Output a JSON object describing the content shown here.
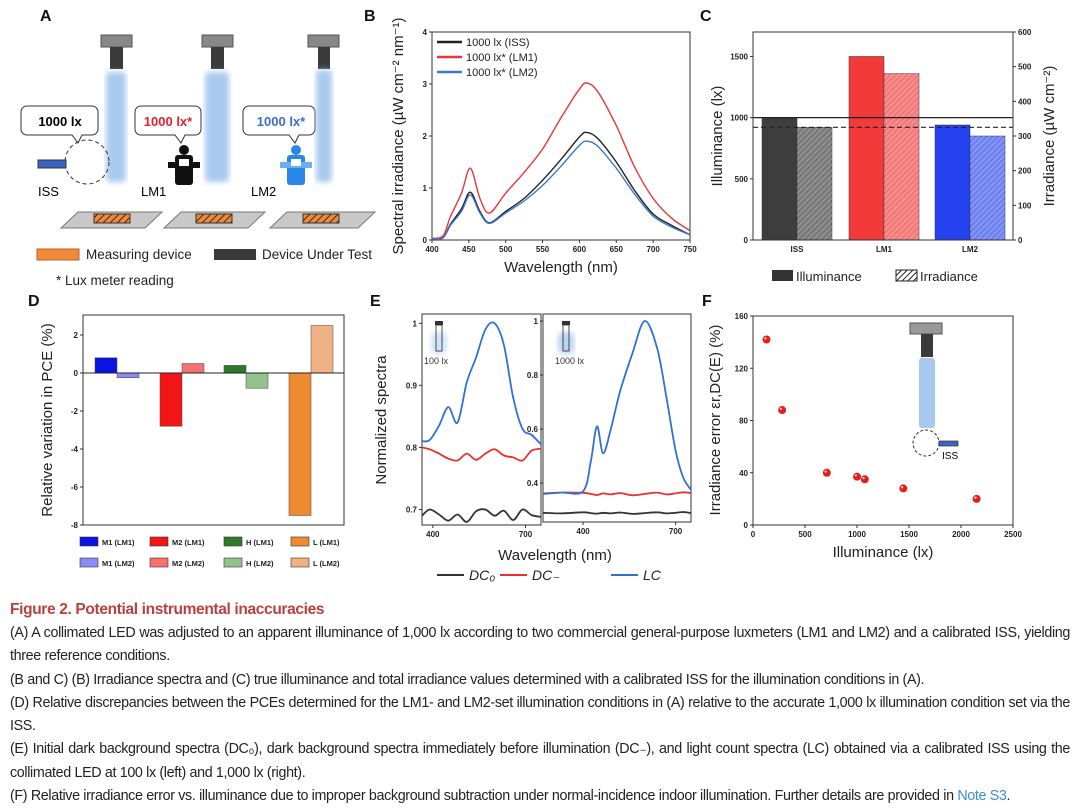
{
  "panel_labels": {
    "A": "A",
    "B": "B",
    "C": "C",
    "D": "D",
    "E": "E",
    "F": "F"
  },
  "panel_a": {
    "bubbles": [
      {
        "text": "1000 lx",
        "color": "#111111"
      },
      {
        "text": "1000 lx*",
        "color": "#e8202a"
      },
      {
        "text": "1000 lx*",
        "color": "#3a6fc4"
      }
    ],
    "meters": [
      "ISS",
      "LM1",
      "LM2"
    ],
    "legend_measuring": "Measuring device",
    "legend_dut": "Device Under Test",
    "note": "* Lux meter reading",
    "colors": {
      "measuring": "#ee8a3a",
      "dut": "#3a3a3a",
      "beam": "#a9c9ee"
    }
  },
  "chart_data": [
    {
      "id": "B",
      "type": "line",
      "xlabel": "Wavelength (nm)",
      "ylabel": "Spectral irradiance (µW cm⁻² nm⁻¹)",
      "xlim": [
        400,
        750
      ],
      "ylim": [
        0,
        4
      ],
      "xticks": [
        400,
        450,
        500,
        550,
        600,
        650,
        700,
        750
      ],
      "yticks": [
        0,
        1,
        2,
        3,
        4
      ],
      "x": [
        400,
        415,
        425,
        440,
        452,
        465,
        478,
        500,
        525,
        550,
        575,
        600,
        610,
        625,
        650,
        675,
        700,
        725,
        750
      ],
      "series": [
        {
          "name": "1000 lx (ISS)",
          "color": "#222222",
          "values": [
            0.02,
            0.05,
            0.3,
            0.6,
            0.92,
            0.55,
            0.33,
            0.55,
            0.8,
            1.15,
            1.55,
            1.98,
            2.07,
            1.95,
            1.5,
            0.95,
            0.5,
            0.28,
            0.1
          ]
        },
        {
          "name": "1000 lx* (LM1)",
          "color": "#e8373a",
          "values": [
            0.03,
            0.08,
            0.45,
            0.9,
            1.38,
            0.8,
            0.52,
            0.9,
            1.3,
            1.75,
            2.35,
            2.9,
            3.02,
            2.85,
            2.2,
            1.4,
            0.8,
            0.42,
            0.18
          ]
        },
        {
          "name": "1000 lx* (LM2)",
          "color": "#3a78d0",
          "values": [
            0.02,
            0.04,
            0.28,
            0.55,
            0.87,
            0.52,
            0.32,
            0.52,
            0.75,
            1.05,
            1.42,
            1.82,
            1.9,
            1.8,
            1.38,
            0.88,
            0.46,
            0.25,
            0.1
          ]
        }
      ],
      "legend": "top-left"
    },
    {
      "id": "C",
      "type": "bar",
      "categories": [
        "ISS",
        "LM1",
        "LM2"
      ],
      "ylabel": "Illuminance (lx)",
      "y2label": "Irradiance (µW cm⁻²)",
      "ylim": [
        0,
        1700
      ],
      "y2lim": [
        0,
        600
      ],
      "yticks": [
        0,
        500,
        1000,
        1500
      ],
      "y2ticks": [
        0,
        100,
        200,
        300,
        400,
        500,
        600
      ],
      "series": [
        {
          "name": "Illuminance",
          "axis": "left",
          "values": [
            1000,
            1500,
            940
          ],
          "colors": [
            "#3d3d3d",
            "#f23a3a",
            "#2541f0"
          ]
        },
        {
          "name": "Irradiance",
          "axis": "right",
          "values": [
            325,
            480,
            300
          ],
          "colors": [
            "#7a7a7a",
            "#f47a7a",
            "#6f82f3"
          ]
        }
      ],
      "ref_lines": {
        "illuminance_solid": 1000,
        "irradiance_dashed": 325
      },
      "legend": "bottom"
    },
    {
      "id": "D",
      "type": "bar",
      "ylabel": "Relative variation in PCE (%)",
      "ylim": [
        -8,
        3
      ],
      "yticks": [
        -8,
        -6,
        -4,
        -2,
        0,
        2
      ],
      "groups": [
        "M1",
        "M2",
        "H",
        "L"
      ],
      "series": [
        {
          "name": "LM1",
          "labels": [
            "M1 (LM1)",
            "M2 (LM1)",
            "H (LM1)",
            "L (LM1)"
          ],
          "values": [
            0.8,
            -2.8,
            0.4,
            -7.5
          ],
          "colors": [
            "#0a14e0",
            "#f21515",
            "#2f7a2a",
            "#ee8a30"
          ]
        },
        {
          "name": "LM2",
          "labels": [
            "M1 (LM2)",
            "M2 (LM2)",
            "H (LM2)",
            "L (LM2)"
          ],
          "values": [
            -0.25,
            0.5,
            -0.8,
            2.5
          ],
          "colors": [
            "#8c8cf5",
            "#f47272",
            "#93c28c",
            "#f0b285"
          ]
        }
      ],
      "legend": "bottom"
    },
    {
      "id": "E",
      "type": "line",
      "ylabel": "Normalized spectra",
      "xlabel": "Wavelength (nm)",
      "legend_labels": [
        "DC₀",
        "DC₋",
        "LC"
      ],
      "legend_colors": [
        "#333333",
        "#e83030",
        "#2f72d4"
      ],
      "panels": [
        {
          "inset_label": "100 lx",
          "xlim": [
            365,
            750
          ],
          "ylim": [
            0.675,
            1.015
          ],
          "xticks": [
            400,
            700
          ],
          "yticks": [
            0.7,
            0.8,
            0.9,
            1.0
          ],
          "x": [
            365,
            390,
            420,
            450,
            480,
            510,
            540,
            570,
            600,
            630,
            660,
            690,
            720,
            750
          ],
          "LC": [
            0.81,
            0.812,
            0.835,
            0.865,
            0.84,
            0.905,
            0.945,
            0.99,
            1.0,
            0.965,
            0.88,
            0.83,
            0.82,
            0.805
          ],
          "DC_minus": [
            0.8,
            0.797,
            0.79,
            0.782,
            0.779,
            0.79,
            0.78,
            0.79,
            0.797,
            0.787,
            0.784,
            0.779,
            0.795,
            0.798
          ],
          "DC0": [
            0.69,
            0.7,
            0.692,
            0.682,
            0.692,
            0.68,
            0.697,
            0.7,
            0.69,
            0.698,
            0.683,
            0.7,
            0.691,
            0.688
          ]
        },
        {
          "inset_label": "1000 lx",
          "xlim": [
            270,
            750
          ],
          "ylim": [
            0.256,
            1.026
          ],
          "xticks": [
            400,
            700
          ],
          "yticks": [
            0.4,
            0.6,
            0.8,
            1.0
          ],
          "x": [
            270,
            330,
            400,
            425,
            445,
            465,
            490,
            520,
            560,
            600,
            640,
            670,
            700,
            725,
            750
          ],
          "LC": [
            0.36,
            0.365,
            0.37,
            0.48,
            0.61,
            0.51,
            0.6,
            0.74,
            0.88,
            1.0,
            0.9,
            0.72,
            0.52,
            0.42,
            0.375
          ],
          "DC_minus": [
            0.362,
            0.365,
            0.364,
            0.36,
            0.356,
            0.362,
            0.358,
            0.363,
            0.355,
            0.36,
            0.365,
            0.358,
            0.362,
            0.366,
            0.363
          ],
          "DC0": [
            0.29,
            0.288,
            0.292,
            0.289,
            0.287,
            0.29,
            0.288,
            0.291,
            0.286,
            0.289,
            0.292,
            0.288,
            0.29,
            0.293,
            0.289
          ]
        }
      ]
    },
    {
      "id": "F",
      "type": "scatter",
      "xlabel": "Illuminance (lx)",
      "ylabel": "Irradiance error εr,DC(E) (%)",
      "xlim": [
        0,
        2500
      ],
      "ylim": [
        0,
        160
      ],
      "xticks": [
        0,
        500,
        1000,
        1500,
        2000,
        2500
      ],
      "yticks": [
        0,
        40,
        80,
        120,
        160
      ],
      "x": [
        130,
        280,
        710,
        1000,
        1075,
        1445,
        2150
      ],
      "y": [
        142,
        88,
        40,
        37,
        35,
        28,
        20
      ],
      "color": "#e81c1c",
      "inset_label": "ISS"
    }
  ],
  "caption": {
    "title": "Figure 2. Potential instrumental inaccuracies",
    "paragraphs": [
      "(A) A collimated LED was adjusted to an apparent illuminance of 1,000 lx according to two commercial general-purpose luxmeters (LM1 and LM2) and a calibrated ISS, yielding three reference conditions.",
      "(B and C) (B) Irradiance spectra and (C) true illuminance and total irradiance values determined with a calibrated ISS for the illumination conditions in (A).",
      "(D) Relative discrepancies between the PCEs determined for the LM1- and LM2-set illumination conditions in (A) relative to the accurate 1,000 lx illumination condition set via the ISS.",
      "(E) Initial dark background spectra (DC₀), dark background spectra immediately before illumination (DC₋), and light count spectra (LC) obtained via a calibrated ISS using the collimated LED at 100 lx (left) and 1,000 lx (right).",
      "(F) Relative irradiance error vs. illuminance due to improper background subtraction under normal-incidence indoor illumination. Further details are provided in"
    ],
    "link": "Note S3",
    "link_suffix": "."
  }
}
